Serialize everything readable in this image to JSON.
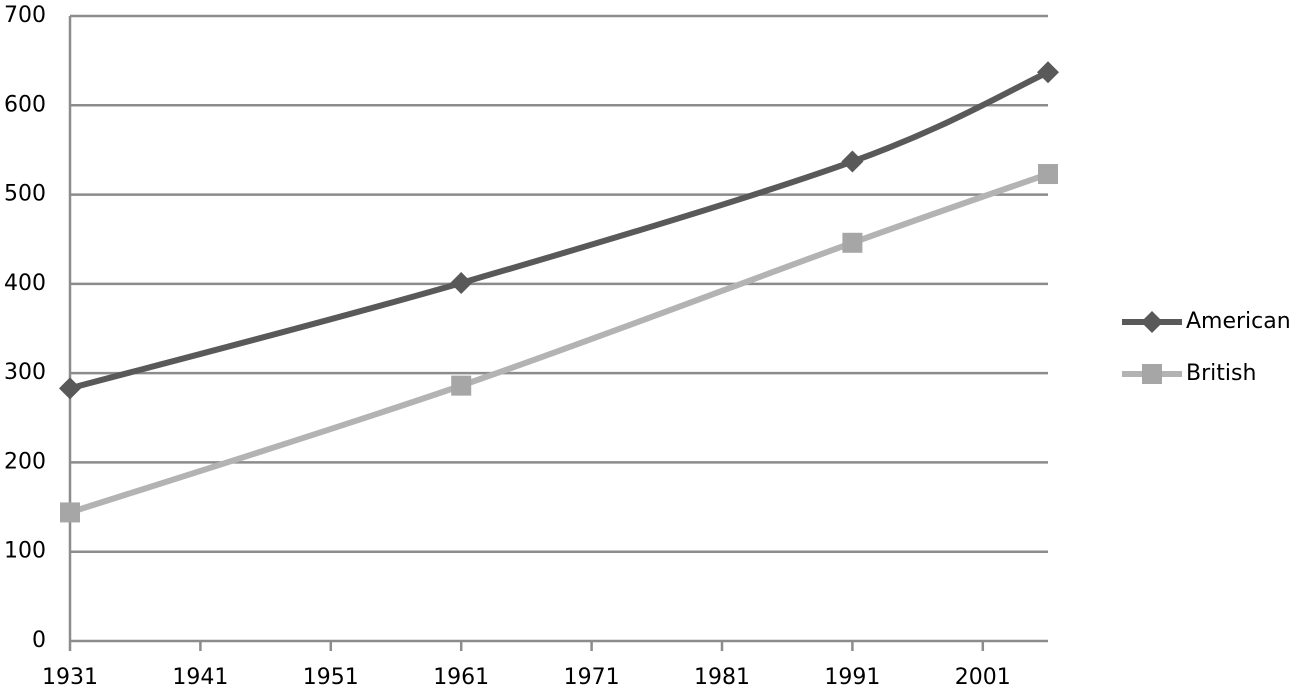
{
  "chart_data": {
    "type": "line",
    "x": [
      1931,
      1961,
      1991,
      2006
    ],
    "series": [
      {
        "name": "American",
        "color": "#595959",
        "marker": "diamond",
        "values": [
          283,
          401,
          537,
          637
        ]
      },
      {
        "name": "British",
        "color": "#b3b3b3",
        "marker": "square",
        "values": [
          144,
          286,
          446,
          523
        ]
      }
    ],
    "xlim": [
      1931,
      2006
    ],
    "xticks": [
      1931,
      1941,
      1951,
      1961,
      1971,
      1981,
      1991,
      2001
    ],
    "ylim": [
      0,
      700
    ],
    "yticks": [
      0,
      100,
      200,
      300,
      400,
      500,
      600,
      700
    ],
    "grid": true,
    "legend": "right"
  }
}
